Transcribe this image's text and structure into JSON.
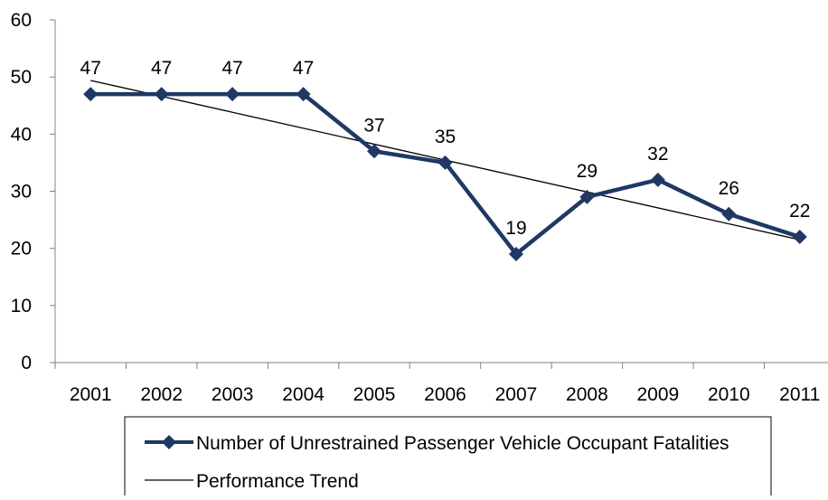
{
  "chart_data": {
    "type": "line",
    "categories": [
      "2001",
      "2002",
      "2003",
      "2004",
      "2005",
      "2006",
      "2007",
      "2008",
      "2009",
      "2010",
      "2011"
    ],
    "ylim": [
      0,
      60
    ],
    "yticks": [
      0,
      10,
      20,
      30,
      40,
      50,
      60
    ],
    "grid": false,
    "legend_position": "bottom",
    "series": [
      {
        "name": "Number of Unrestrained Passenger Vehicle Occupant Fatalities",
        "values": [
          47,
          47,
          47,
          47,
          37,
          35,
          19,
          29,
          32,
          26,
          22
        ],
        "color": "#1f3864",
        "marker": "diamond",
        "data_labels": true
      },
      {
        "name": "Performance Trend",
        "type": "linear-trend",
        "start": 49.4,
        "end": 21.5,
        "color": "#000000"
      }
    ]
  }
}
